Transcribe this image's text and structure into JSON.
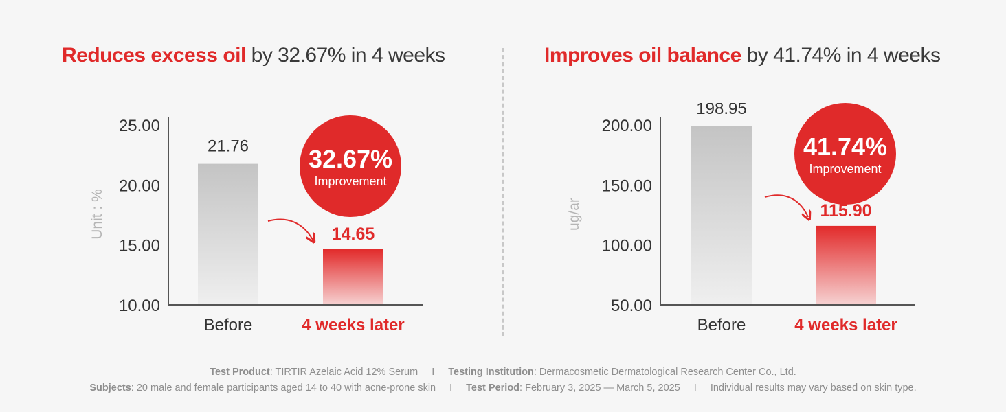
{
  "left_title": {
    "highlight": "Reduces excess oil",
    "rest": " by 32.67% in 4 weeks"
  },
  "right_title": {
    "highlight": "Improves oil balance",
    "rest": " by 41.74% in 4 weeks"
  },
  "chart_data": [
    {
      "type": "bar",
      "ylabel": "Unit : %",
      "yticks": [
        "10.00",
        "15.00",
        "20.00",
        "25.00"
      ],
      "ylim": [
        10,
        25
      ],
      "categories": [
        "Before",
        "4 weeks later"
      ],
      "values": [
        21.76,
        14.65
      ],
      "value_labels": [
        "21.76",
        "14.65"
      ],
      "badge": {
        "value": "32.67%",
        "label": "Improvement"
      }
    },
    {
      "type": "bar",
      "ylabel": "ug/ar",
      "yticks": [
        "50.00",
        "100.00",
        "150.00",
        "200.00"
      ],
      "ylim": [
        50,
        200
      ],
      "categories": [
        "Before",
        "4 weeks later"
      ],
      "values": [
        198.95,
        115.9
      ],
      "value_labels": [
        "198.95",
        "115.90"
      ],
      "badge": {
        "value": "41.74%",
        "label": "Improvement"
      }
    }
  ],
  "colors": {
    "accent": "#e02a2a",
    "bar_gray": "#c4c4c4",
    "axis": "#555555",
    "text": "#3a3a3a"
  },
  "footer": {
    "line1": [
      {
        "key": "Test Product",
        "value": ": TIRTIR Azelaic Acid 12% Serum"
      },
      {
        "key": "Testing Institution",
        "value": ": Dermacosmetic Dermatological Research Center Co., Ltd."
      }
    ],
    "line2": [
      {
        "key": "Subjects",
        "value": ": 20 male and female participants aged 14 to 40 with acne-prone skin"
      },
      {
        "key": "Test Period",
        "value": ": February 3, 2025 — March 5, 2025"
      },
      {
        "key": "",
        "value": "Individual results may vary based on skin type."
      }
    ],
    "separator": "I"
  }
}
